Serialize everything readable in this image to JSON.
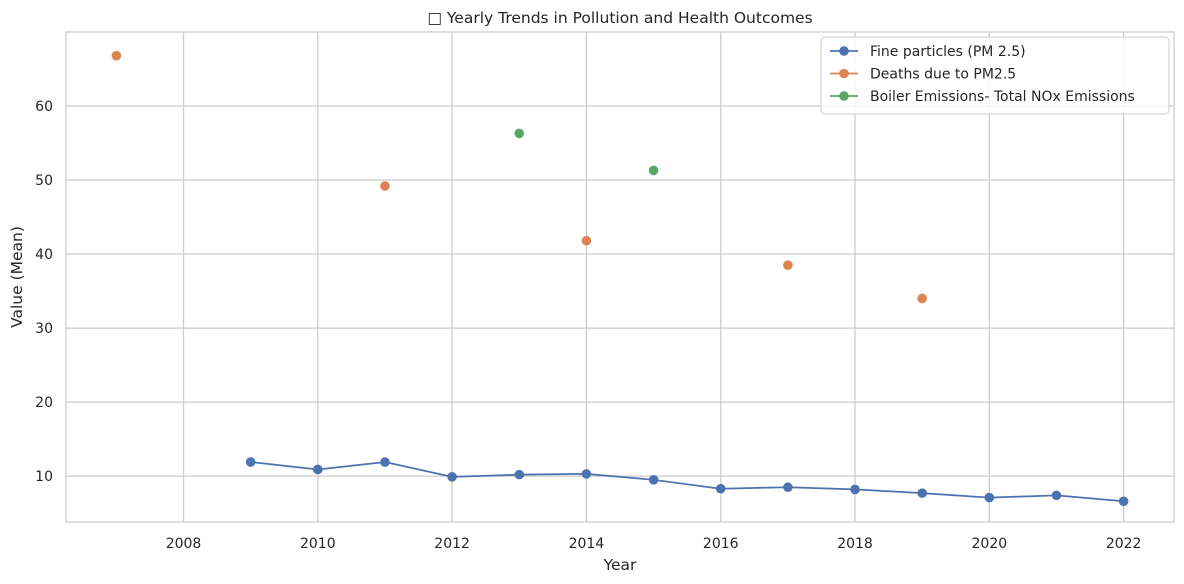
{
  "chart_data": {
    "type": "line",
    "title": "□ Yearly Trends in Pollution and Health Outcomes",
    "xlabel": "Year",
    "ylabel": "Value (Mean)",
    "xlim": [
      2006.25,
      2022.75
    ],
    "ylim": [
      3.8,
      70
    ],
    "xticks": [
      2008,
      2010,
      2012,
      2014,
      2016,
      2018,
      2020,
      2022
    ],
    "yticks": [
      10,
      20,
      30,
      40,
      50,
      60
    ],
    "grid": true,
    "legend_position": "top-right",
    "series": [
      {
        "name": "Fine particles (PM 2.5)",
        "color": "#4c72b0",
        "x": [
          2009,
          2010,
          2011,
          2012,
          2013,
          2014,
          2015,
          2016,
          2017,
          2018,
          2019,
          2020,
          2021,
          2022
        ],
        "y": [
          11.9,
          10.9,
          11.9,
          9.9,
          10.2,
          10.3,
          9.5,
          8.3,
          8.5,
          8.2,
          7.7,
          7.1,
          7.4,
          6.6
        ]
      },
      {
        "name": "Deaths due to PM2.5",
        "color": "#dd8452",
        "x": [
          2007,
          2011,
          2014,
          2017,
          2019
        ],
        "y": [
          66.8,
          49.2,
          41.8,
          38.5,
          34.0
        ]
      },
      {
        "name": "Boiler Emissions- Total NOx Emissions",
        "color": "#55a868",
        "x": [
          2013,
          2015
        ],
        "y": [
          56.3,
          51.3
        ]
      }
    ]
  }
}
